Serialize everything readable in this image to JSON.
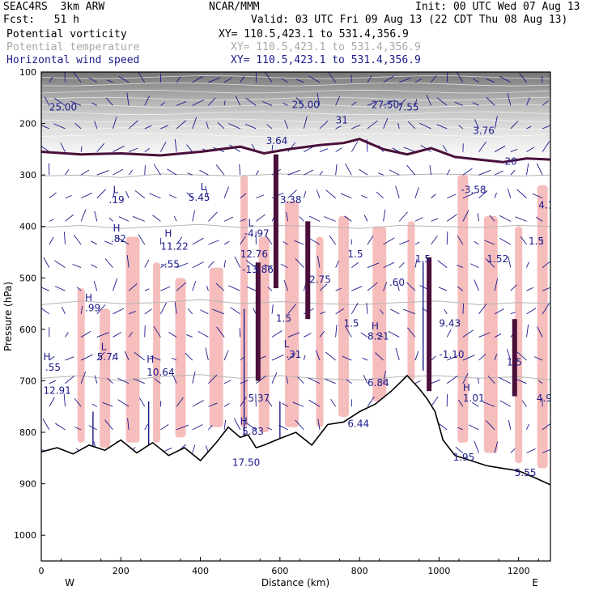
{
  "header": {
    "run_label": "SEAC4RS  3km ARW",
    "center_label": "NCAR/MMM",
    "init_label": "Init: 00 UTC Wed 07 Aug 13",
    "fcst_label": "Fcst:   51 h",
    "valid_label": "Valid: 03 UTC Fri 09 Aug 13 (22 CDT Thu 08 Aug 13)"
  },
  "fields": [
    {
      "name": "Potential vorticity",
      "xy": "XY= 110.5,423.1 to 531.4,356.9",
      "color": "#000000"
    },
    {
      "name": "Potential temperature",
      "xy": "XY= 110.5,423.1 to 531.4,356.9",
      "color": "#a8a8a8"
    },
    {
      "name": "Horizontal wind speed",
      "xy": "XY= 110.5,423.1 to 531.4,356.9",
      "color": "#1a1a8c"
    }
  ],
  "chart_data": {
    "type": "cross-section",
    "xlabel": "Distance (km)",
    "ylabel": "Pressure (hPa)",
    "xlim": [
      0,
      1280
    ],
    "ylim": [
      1050,
      100
    ],
    "x_ticks": [
      0,
      200,
      400,
      600,
      800,
      1000,
      1200
    ],
    "x_tick_labels": [
      "0",
      "200",
      "400",
      "600",
      "800",
      "1000",
      "1200"
    ],
    "y_ticks": [
      100,
      200,
      300,
      400,
      500,
      600,
      700,
      800,
      900,
      1000
    ],
    "y_tick_labels": [
      "100",
      "200",
      "300",
      "400",
      "500",
      "600",
      "700",
      "800",
      "900",
      "1000"
    ],
    "west_label": "W",
    "east_label": "E",
    "terrain": {
      "x": [
        0,
        40,
        80,
        120,
        160,
        200,
        240,
        280,
        320,
        360,
        400,
        440,
        470,
        500,
        520,
        540,
        560,
        600,
        640,
        680,
        720,
        760,
        800,
        840,
        880,
        920,
        950,
        970,
        990,
        1010,
        1040,
        1080,
        1120,
        1160,
        1200,
        1240,
        1280
      ],
      "p": [
        838,
        830,
        842,
        825,
        835,
        815,
        840,
        820,
        845,
        830,
        855,
        820,
        790,
        810,
        805,
        830,
        825,
        812,
        800,
        825,
        785,
        780,
        760,
        745,
        720,
        690,
        715,
        735,
        760,
        815,
        845,
        855,
        865,
        870,
        875,
        888,
        902
      ]
    },
    "theta_contours": [
      {
        "x": [
          0,
          100,
          200,
          300,
          400,
          500,
          600,
          700,
          800,
          900,
          1000,
          1100,
          1200,
          1280
        ],
        "p": [
          302,
          300,
          305,
          298,
          300,
          302,
          298,
          300,
          304,
          300,
          298,
          300,
          302,
          300
        ]
      },
      {
        "x": [
          0,
          100,
          200,
          300,
          400,
          500,
          600,
          700,
          800,
          900,
          1000,
          1100,
          1200,
          1280
        ],
        "p": [
          402,
          398,
          404,
          400,
          396,
          402,
          398,
          400,
          404,
          398,
          400,
          402,
          398,
          400
        ]
      },
      {
        "x": [
          0,
          100,
          200,
          300,
          400,
          500,
          600,
          700,
          800,
          900,
          1000,
          1100,
          1200,
          1280
        ],
        "p": [
          552,
          545,
          550,
          548,
          542,
          550,
          546,
          550,
          552,
          548,
          545,
          552,
          548,
          550
        ]
      },
      {
        "x": [
          0,
          100,
          200,
          300,
          400,
          500,
          600,
          700,
          800,
          900,
          1000,
          1100,
          1200,
          1280
        ],
        "p": [
          695,
          690,
          700,
          692,
          688,
          695,
          690,
          696,
          698,
          692,
          690,
          695,
          692,
          698
        ]
      }
    ],
    "pv_tropopause": {
      "x": [
        0,
        100,
        200,
        300,
        400,
        500,
        560,
        620,
        700,
        760,
        800,
        860,
        920,
        980,
        1040,
        1100,
        1160,
        1220,
        1280
      ],
      "p": [
        255,
        260,
        258,
        262,
        255,
        245,
        258,
        250,
        242,
        238,
        230,
        250,
        260,
        248,
        265,
        270,
        275,
        268,
        270
      ]
    },
    "pink_towers": [
      {
        "x": 100,
        "p_top": 520,
        "p_bottom": 820
      },
      {
        "x": 160,
        "p_top": 560,
        "p_bottom": 830
      },
      {
        "x": 230,
        "p_top": 420,
        "p_bottom": 820
      },
      {
        "x": 290,
        "p_top": 470,
        "p_bottom": 820
      },
      {
        "x": 350,
        "p_top": 500,
        "p_bottom": 810
      },
      {
        "x": 440,
        "p_top": 480,
        "p_bottom": 790
      },
      {
        "x": 510,
        "p_top": 300,
        "p_bottom": 790
      },
      {
        "x": 560,
        "p_top": 420,
        "p_bottom": 800
      },
      {
        "x": 630,
        "p_top": 350,
        "p_bottom": 790
      },
      {
        "x": 700,
        "p_top": 420,
        "p_bottom": 790
      },
      {
        "x": 760,
        "p_top": 380,
        "p_bottom": 770
      },
      {
        "x": 850,
        "p_top": 400,
        "p_bottom": 740
      },
      {
        "x": 930,
        "p_top": 390,
        "p_bottom": 700
      },
      {
        "x": 1060,
        "p_top": 300,
        "p_bottom": 820
      },
      {
        "x": 1130,
        "p_top": 380,
        "p_bottom": 840
      },
      {
        "x": 1200,
        "p_top": 400,
        "p_bottom": 860
      },
      {
        "x": 1260,
        "p_top": 320,
        "p_bottom": 870
      }
    ],
    "pv_towers": [
      {
        "x": 545,
        "p_top": 470,
        "p_bottom": 700
      },
      {
        "x": 590,
        "p_top": 260,
        "p_bottom": 520
      },
      {
        "x": 670,
        "p_top": 390,
        "p_bottom": 580
      },
      {
        "x": 975,
        "p_top": 460,
        "p_bottom": 720
      },
      {
        "x": 1190,
        "p_top": 580,
        "p_bottom": 730
      }
    ],
    "labels": [
      {
        "x": 5,
        "p": 660,
        "text": "H"
      },
      {
        "x": 10,
        "p": 680,
        "text": ".55"
      },
      {
        "x": 5,
        "p": 725,
        "text": "12.91"
      },
      {
        "x": 110,
        "p": 545,
        "text": "H"
      },
      {
        "x": 110,
        "p": 565,
        "text": ".99"
      },
      {
        "x": 150,
        "p": 640,
        "text": "L"
      },
      {
        "x": 140,
        "p": 660,
        "text": "5.74"
      },
      {
        "x": 180,
        "p": 335,
        "text": "L"
      },
      {
        "x": 170,
        "p": 355,
        "text": ".19"
      },
      {
        "x": 180,
        "p": 410,
        "text": "H"
      },
      {
        "x": 175,
        "p": 430,
        "text": ".82"
      },
      {
        "x": 310,
        "p": 420,
        "text": "H"
      },
      {
        "x": 300,
        "p": 445,
        "text": "11.22"
      },
      {
        "x": 300,
        "p": 480,
        "text": "-.55"
      },
      {
        "x": 265,
        "p": 665,
        "text": "H"
      },
      {
        "x": 265,
        "p": 690,
        "text": "10.64"
      },
      {
        "x": 400,
        "p": 330,
        "text": "L"
      },
      {
        "x": 370,
        "p": 350,
        "text": "5.45"
      },
      {
        "x": 520,
        "p": 400,
        "text": "L"
      },
      {
        "x": 510,
        "p": 420,
        "text": "-4.97"
      },
      {
        "x": 500,
        "p": 460,
        "text": "12.76"
      },
      {
        "x": 505,
        "p": 490,
        "text": "-13.86"
      },
      {
        "x": 520,
        "p": 740,
        "text": "5.37"
      },
      {
        "x": 500,
        "p": 785,
        "text": "H"
      },
      {
        "x": 505,
        "p": 805,
        "text": "5.83"
      },
      {
        "x": 480,
        "p": 865,
        "text": "17.50"
      },
      {
        "x": 565,
        "p": 240,
        "text": "3.64"
      },
      {
        "x": 600,
        "p": 355,
        "text": "3.38"
      },
      {
        "x": 610,
        "p": 635,
        "text": "L"
      },
      {
        "x": 615,
        "p": 655,
        "text": ".31"
      },
      {
        "x": 665,
        "p": 510,
        "text": "-2.75"
      },
      {
        "x": 760,
        "p": 595,
        "text": "1.5"
      },
      {
        "x": 770,
        "p": 790,
        "text": "6.44"
      },
      {
        "x": 830,
        "p": 600,
        "text": "H"
      },
      {
        "x": 820,
        "p": 620,
        "text": "8.21"
      },
      {
        "x": 820,
        "p": 710,
        "text": "6.84"
      },
      {
        "x": 875,
        "p": 515,
        "text": ".60"
      },
      {
        "x": 895,
        "p": 175,
        "text": "7.55"
      },
      {
        "x": 1000,
        "p": 595,
        "text": "9.43"
      },
      {
        "x": 1000,
        "p": 655,
        "text": "-1.10"
      },
      {
        "x": 1035,
        "p": 855,
        "text": "1.95"
      },
      {
        "x": 1060,
        "p": 720,
        "text": "H"
      },
      {
        "x": 1060,
        "p": 740,
        "text": "1.01"
      },
      {
        "x": 1055,
        "p": 335,
        "text": "-3.58"
      },
      {
        "x": 1120,
        "p": 470,
        "text": "1.52"
      },
      {
        "x": 1190,
        "p": 885,
        "text": "5.55"
      },
      {
        "x": 1245,
        "p": 740,
        "text": "4.9"
      },
      {
        "x": 1250,
        "p": 365,
        "text": "4.1"
      },
      {
        "x": 1085,
        "p": 220,
        "text": "3.76"
      },
      {
        "x": 1165,
        "p": 280,
        "text": "20"
      },
      {
        "x": 830,
        "p": 170,
        "text": "27.50"
      },
      {
        "x": 630,
        "p": 170,
        "text": "25.00"
      },
      {
        "x": 740,
        "p": 200,
        "text": "31"
      },
      {
        "x": 20,
        "p": 175,
        "text": "25.00"
      },
      {
        "x": 590,
        "p": 585,
        "text": "1.5"
      },
      {
        "x": 770,
        "p": 460,
        "text": "1.5"
      },
      {
        "x": 940,
        "p": 470,
        "text": "1.5"
      },
      {
        "x": 1170,
        "p": 670,
        "text": "1.5"
      },
      {
        "x": 1225,
        "p": 435,
        "text": "1.5"
      }
    ],
    "grid": false,
    "legend": "none"
  }
}
